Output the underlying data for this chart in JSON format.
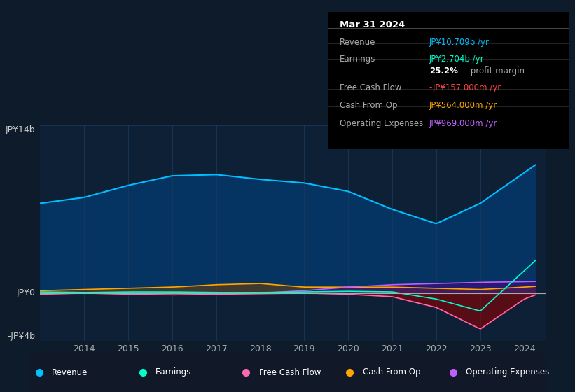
{
  "bg_color": "#0d1b2a",
  "chart_bg": "#0d2035",
  "title": "Mar 31 2024",
  "ylabel_top": "JP¥14b",
  "ylabel_zero": "JP¥0",
  "ylabel_bottom": "-JP¥4b",
  "xticklabels": [
    "2014",
    "2015",
    "2016",
    "2017",
    "2018",
    "2019",
    "2020",
    "2021",
    "2022",
    "2023",
    "2024"
  ],
  "legend": [
    {
      "label": "Revenue",
      "color": "#00bfff"
    },
    {
      "label": "Earnings",
      "color": "#00ffcc"
    },
    {
      "label": "Free Cash Flow",
      "color": "#ff69b4"
    },
    {
      "label": "Cash From Op",
      "color": "#ffa500"
    },
    {
      "label": "Operating Expenses",
      "color": "#bf5fff"
    }
  ],
  "info_box": {
    "date": "Mar 31 2024",
    "rows": [
      {
        "label": "Revenue",
        "value": "JP¥10.709b /yr",
        "value_color": "#00bfff"
      },
      {
        "label": "Earnings",
        "value": "JP¥2.704b /yr",
        "value_color": "#00ffcc"
      },
      {
        "label": "",
        "value": "25.2% profit margin",
        "value_color": "#ffffff",
        "bold_prefix": "25.2%"
      },
      {
        "label": "Free Cash Flow",
        "value": "-JP¥157.000m /yr",
        "value_color": "#ff4444"
      },
      {
        "label": "Cash From Op",
        "value": "JP¥564.000m /yr",
        "value_color": "#ffa500"
      },
      {
        "label": "Operating Expenses",
        "value": "JP¥969.000m /yr",
        "value_color": "#bf5fff"
      }
    ]
  },
  "ylim": [
    -4000000000.0,
    14000000000.0
  ],
  "xlim": [
    2013.0,
    2024.5
  ]
}
